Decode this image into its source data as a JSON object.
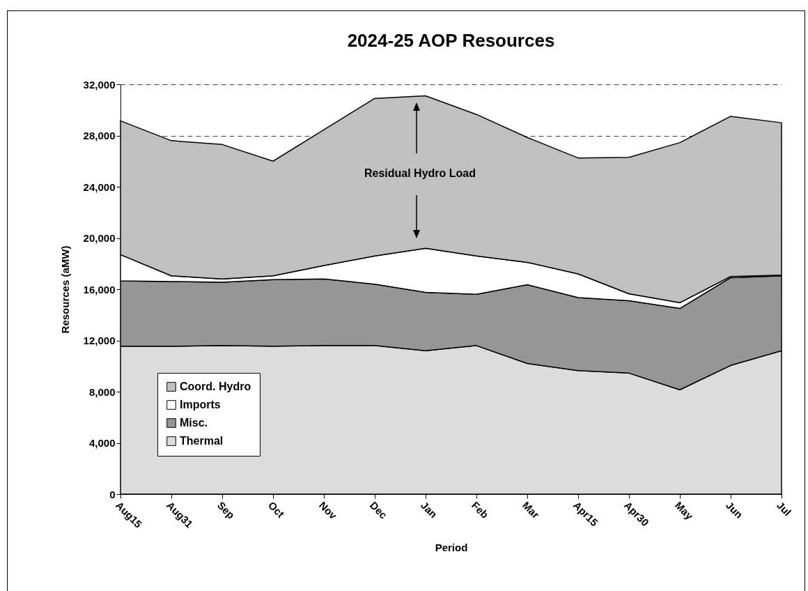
{
  "chart_data": {
    "type": "area",
    "title": "2024-25 AOP Resources",
    "xlabel": "Period",
    "ylabel": "Resources (aMW)",
    "categories": [
      "Aug15",
      "Aug31",
      "Sep",
      "Oct",
      "Nov",
      "Dec",
      "Jan",
      "Feb",
      "Mar",
      "Apr15",
      "Apr30",
      "May",
      "Jun",
      "Jul"
    ],
    "stacked": true,
    "series": [
      {
        "name": "Thermal",
        "color": "#dcdcdc",
        "values": [
          11550,
          11550,
          11600,
          11550,
          11600,
          11600,
          11200,
          11600,
          10200,
          9650,
          9450,
          8150,
          10050,
          11200
        ]
      },
      {
        "name": "Misc.",
        "color": "#969696",
        "values": [
          5100,
          5050,
          4950,
          5200,
          5200,
          4800,
          4550,
          4000,
          6150,
          5700,
          5650,
          6350,
          6850,
          5850
        ]
      },
      {
        "name": "Imports",
        "color": "#ffffff",
        "values": [
          2050,
          450,
          250,
          300,
          1050,
          2200,
          3450,
          3000,
          1750,
          1850,
          550,
          450,
          100,
          50
        ]
      },
      {
        "name": "Coord. Hydro",
        "color": "#c0c0c0",
        "values": [
          10450,
          10550,
          10500,
          8950,
          10600,
          12300,
          11900,
          11050,
          9750,
          9050,
          10650,
          12500,
          12500,
          11900
        ]
      }
    ],
    "ylim": [
      0,
      32000
    ],
    "yticks": [
      0,
      {
        "value": 4000,
        "label": "4,000"
      },
      {
        "value": 8000,
        "label": "8,000"
      },
      {
        "value": 12000,
        "label": "12,000"
      },
      {
        "value": 16000,
        "label": "16,000"
      },
      {
        "value": 20000,
        "label": "20,000"
      },
      {
        "value": 24000,
        "label": "24,000"
      },
      {
        "value": 28000,
        "label": "28,000"
      },
      {
        "value": 32000,
        "label": "32,000"
      }
    ],
    "grid": "y",
    "legend": "bottom left",
    "annotations": [
      "Residual Hydro Load"
    ]
  }
}
